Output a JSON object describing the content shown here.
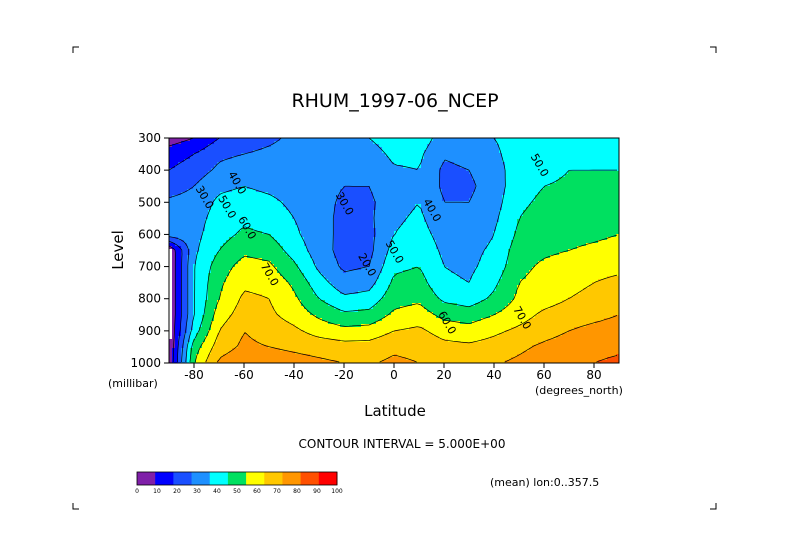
{
  "chart_data": {
    "type": "contour",
    "title": "RHUM_1997-06_NCEP",
    "xlabel": "Latitude",
    "ylabel": "Level",
    "x_units": "(degrees_north)",
    "y_units": "(millibar)",
    "xlim": [
      -90,
      90
    ],
    "ylim": [
      1000,
      300
    ],
    "x_ticks": [
      -80,
      -60,
      -40,
      -20,
      0,
      20,
      40,
      60,
      80
    ],
    "x_tick_labels": [
      "-80",
      "-60",
      "-40",
      "-20",
      "0",
      "20",
      "40",
      "60",
      "80"
    ],
    "y_ticks": [
      300,
      400,
      500,
      600,
      700,
      800,
      900,
      1000
    ],
    "y_tick_labels": [
      "300",
      "400",
      "500",
      "600",
      "700",
      "800",
      "900",
      "1000"
    ],
    "contour_interval_text": "CONTOUR INTERVAL = 5.000E+00",
    "subtitle_note": "(mean) lon:0..357.5",
    "contour_labels": [
      {
        "text": "30.0",
        "lat": -77,
        "level": 490
      },
      {
        "text": "40.0",
        "lat": -64,
        "level": 445
      },
      {
        "text": "50.0",
        "lat": -68,
        "level": 520
      },
      {
        "text": "60.0",
        "lat": -60,
        "level": 585
      },
      {
        "text": "70.0",
        "lat": -51,
        "level": 730
      },
      {
        "text": "30.0",
        "lat": -21,
        "level": 510
      },
      {
        "text": "20.0",
        "lat": -12,
        "level": 700
      },
      {
        "text": "50.0",
        "lat": -1,
        "level": 660
      },
      {
        "text": "40.0",
        "lat": 14,
        "level": 530
      },
      {
        "text": "60.0",
        "lat": 20,
        "level": 880
      },
      {
        "text": "70.0",
        "lat": 50,
        "level": 865
      },
      {
        "text": "50.0",
        "lat": 57,
        "level": 390
      }
    ],
    "field_profile": {
      "levels": [
        1000,
        950,
        900,
        850,
        800,
        750,
        700,
        650,
        600,
        550,
        500,
        450,
        400,
        350,
        300
      ],
      "lats": [
        -90,
        -80,
        -70,
        -60,
        -50,
        -40,
        -30,
        -20,
        -10,
        0,
        10,
        20,
        30,
        40,
        50,
        60,
        70,
        80,
        90
      ],
      "values": [
        [
          0,
          60,
          82,
          88,
          86,
          84,
          82,
          80,
          79,
          82,
          80,
          77,
          77,
          79,
          82,
          85,
          88,
          90,
          92
        ],
        [
          0,
          55,
          75,
          82,
          80,
          78,
          76,
          74,
          74,
          78,
          77,
          73,
          72,
          74,
          78,
          82,
          85,
          87,
          88
        ],
        [
          0,
          45,
          70,
          80,
          76,
          72,
          66,
          63,
          64,
          70,
          72,
          66,
          64,
          68,
          72,
          76,
          80,
          83,
          85
        ],
        [
          0,
          40,
          65,
          75,
          72,
          66,
          58,
          52,
          53,
          62,
          65,
          57,
          55,
          60,
          66,
          72,
          75,
          77,
          80
        ],
        [
          0,
          40,
          60,
          72,
          70,
          62,
          50,
          42,
          44,
          56,
          58,
          48,
          45,
          52,
          62,
          66,
          70,
          72,
          75
        ],
        [
          0,
          40,
          58,
          68,
          67,
          58,
          44,
          34,
          36,
          52,
          54,
          42,
          40,
          48,
          60,
          64,
          68,
          70,
          72
        ],
        [
          0,
          40,
          55,
          64,
          62,
          52,
          38,
          28,
          30,
          48,
          50,
          40,
          38,
          44,
          57,
          62,
          65,
          67,
          68
        ],
        [
          0,
          38,
          50,
          58,
          56,
          46,
          35,
          26,
          27,
          44,
          47,
          38,
          37,
          42,
          55,
          58,
          60,
          62,
          64
        ],
        [
          35,
          37,
          46,
          52,
          50,
          42,
          34,
          27,
          27,
          40,
          44,
          36,
          34,
          40,
          52,
          56,
          57,
          58,
          60
        ],
        [
          35,
          36,
          44,
          48,
          45,
          40,
          34,
          27,
          28,
          38,
          42,
          33,
          32,
          38,
          50,
          54,
          55,
          56,
          57
        ],
        [
          32,
          34,
          42,
          44,
          42,
          38,
          34,
          28,
          28,
          36,
          40,
          30,
          30,
          36,
          48,
          52,
          53,
          54,
          55
        ],
        [
          25,
          30,
          38,
          40,
          38,
          36,
          34,
          30,
          30,
          37,
          39,
          28,
          28,
          35,
          46,
          50,
          51,
          52,
          52
        ],
        [
          20,
          25,
          32,
          35,
          35,
          34,
          34,
          32,
          33,
          39,
          40,
          28,
          30,
          36,
          45,
          48,
          50,
          50,
          50
        ],
        [
          15,
          20,
          28,
          30,
          32,
          34,
          35,
          34,
          36,
          42,
          42,
          31,
          33,
          38,
          45,
          47,
          48,
          48,
          48
        ],
        [
          5,
          10,
          20,
          25,
          28,
          32,
          35,
          38,
          40,
          45,
          46,
          35,
          37,
          40,
          44,
          45,
          46,
          46,
          45
        ]
      ]
    },
    "colorbar": {
      "labels": [
        "0",
        "10",
        "20",
        "30",
        "40",
        "50",
        "60",
        "70",
        "80",
        "90",
        "100"
      ],
      "colors": [
        "#7f1fa8",
        "#0000ff",
        "#1a4fff",
        "#1e90ff",
        "#00ffff",
        "#00e060",
        "#ffff00",
        "#ffc800",
        "#ff9600",
        "#ff5000",
        "#ff0000"
      ]
    },
    "missing_color": "#ffffff",
    "grid": false,
    "legend": "bottom-left colorbar"
  }
}
